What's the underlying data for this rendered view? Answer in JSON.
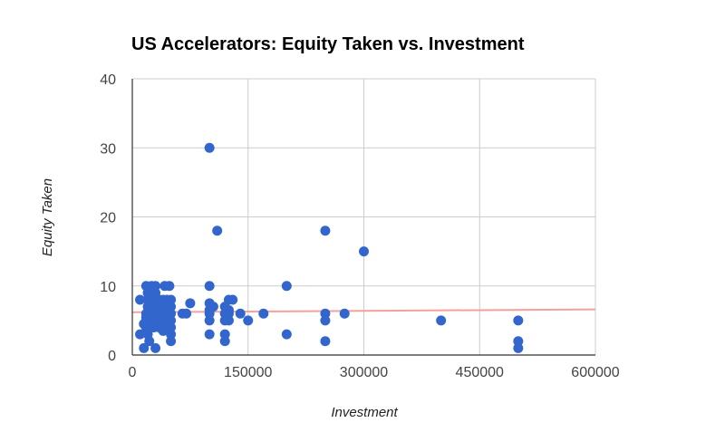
{
  "chart_data": {
    "type": "scatter",
    "title": "US Accelerators: Equity Taken vs. Investment",
    "xlabel": "Investment",
    "ylabel": "Equity Taken",
    "xlim": [
      0,
      600000
    ],
    "ylim": [
      0,
      40
    ],
    "x_ticks": [
      "0",
      "150000",
      "300000",
      "450000",
      "600000"
    ],
    "y_ticks": [
      "0",
      "10",
      "20",
      "30",
      "40"
    ],
    "grid": true,
    "legend": "none",
    "colors": {
      "points": "#3366cc",
      "trendline": "#f4a09c",
      "grid": "#cccccc",
      "axis": "#333333"
    },
    "trendline": {
      "type": "linear",
      "start": [
        0,
        6.2
      ],
      "end": [
        600000,
        6.6
      ]
    },
    "points": [
      [
        10000,
        3
      ],
      [
        10000,
        8
      ],
      [
        15000,
        4.5
      ],
      [
        15000,
        1
      ],
      [
        18000,
        10
      ],
      [
        18000,
        6
      ],
      [
        18000,
        5.5
      ],
      [
        18000,
        5
      ],
      [
        18000,
        4
      ],
      [
        20000,
        9
      ],
      [
        20000,
        8
      ],
      [
        20000,
        7
      ],
      [
        20000,
        6
      ],
      [
        20000,
        3
      ],
      [
        22000,
        5
      ],
      [
        22000,
        4.5
      ],
      [
        22000,
        2
      ],
      [
        25000,
        10
      ],
      [
        25000,
        8
      ],
      [
        25000,
        6
      ],
      [
        25000,
        5
      ],
      [
        25000,
        4
      ],
      [
        28000,
        7
      ],
      [
        28000,
        6
      ],
      [
        28000,
        5.5
      ],
      [
        28000,
        4
      ],
      [
        30000,
        10
      ],
      [
        30000,
        9
      ],
      [
        30000,
        8
      ],
      [
        30000,
        7
      ],
      [
        30000,
        6
      ],
      [
        30000,
        1
      ],
      [
        32000,
        5
      ],
      [
        32000,
        4.5
      ],
      [
        35000,
        8
      ],
      [
        35000,
        6
      ],
      [
        35000,
        5
      ],
      [
        35000,
        4
      ],
      [
        38000,
        7
      ],
      [
        38000,
        6
      ],
      [
        38000,
        5
      ],
      [
        38000,
        4
      ],
      [
        40000,
        8
      ],
      [
        40000,
        6
      ],
      [
        40000,
        5
      ],
      [
        40000,
        3.5
      ],
      [
        42000,
        10
      ],
      [
        45000,
        8
      ],
      [
        45000,
        7
      ],
      [
        45000,
        6
      ],
      [
        45000,
        5
      ],
      [
        45000,
        4
      ],
      [
        48000,
        10
      ],
      [
        50000,
        8
      ],
      [
        50000,
        7
      ],
      [
        50000,
        6
      ],
      [
        50000,
        5
      ],
      [
        50000,
        4
      ],
      [
        50000,
        3
      ],
      [
        50000,
        2
      ],
      [
        65000,
        6
      ],
      [
        70000,
        6
      ],
      [
        75000,
        7.5
      ],
      [
        100000,
        30
      ],
      [
        100000,
        10
      ],
      [
        100000,
        7.5
      ],
      [
        100000,
        6.5
      ],
      [
        100000,
        6
      ],
      [
        100000,
        5
      ],
      [
        100000,
        3
      ],
      [
        105000,
        7
      ],
      [
        110000,
        18
      ],
      [
        120000,
        7
      ],
      [
        120000,
        6
      ],
      [
        120000,
        5
      ],
      [
        120000,
        3
      ],
      [
        120000,
        2
      ],
      [
        125000,
        8
      ],
      [
        125000,
        6.5
      ],
      [
        125000,
        6
      ],
      [
        125000,
        5
      ],
      [
        130000,
        8
      ],
      [
        140000,
        6
      ],
      [
        150000,
        5
      ],
      [
        170000,
        6
      ],
      [
        200000,
        10
      ],
      [
        200000,
        3
      ],
      [
        250000,
        18
      ],
      [
        250000,
        6
      ],
      [
        250000,
        5
      ],
      [
        250000,
        2
      ],
      [
        275000,
        6
      ],
      [
        300000,
        15
      ],
      [
        400000,
        5
      ],
      [
        500000,
        5
      ],
      [
        500000,
        2
      ],
      [
        500000,
        1
      ]
    ]
  }
}
